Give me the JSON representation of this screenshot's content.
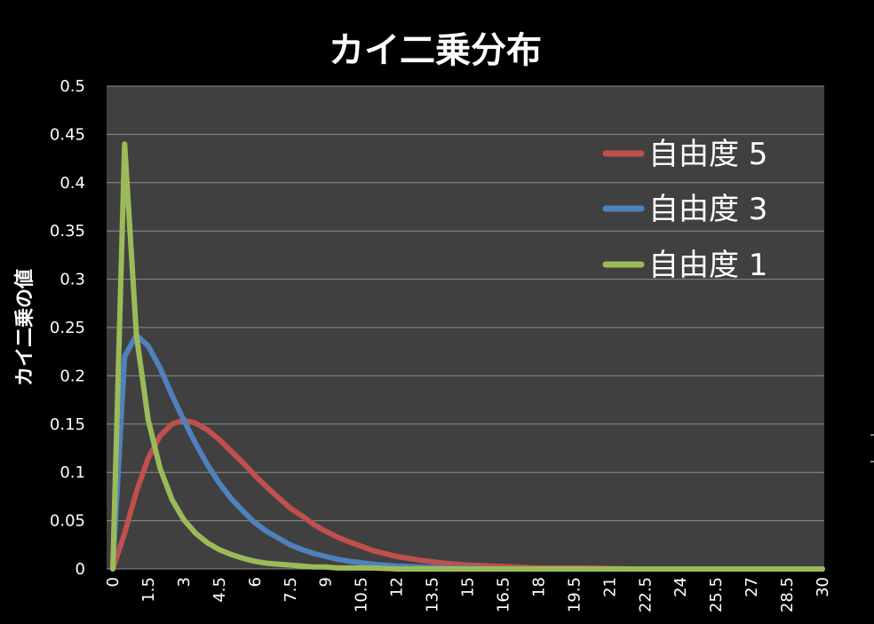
{
  "chart_data": {
    "type": "line",
    "title": "カイ二乗分布",
    "xlabel": "",
    "ylabel": "カイ二乗の値",
    "xlim": [
      0,
      30
    ],
    "ylim": [
      0,
      0.5
    ],
    "y_ticks": [
      "0",
      "0.05",
      "0.1",
      "0.15",
      "0.2",
      "0.25",
      "0.3",
      "0.35",
      "0.4",
      "0.45",
      "0.5"
    ],
    "x_ticks": [
      "0",
      "1.5",
      "3",
      "4.5",
      "6",
      "7.5",
      "9",
      "10.5",
      "12",
      "13.5",
      "15",
      "16.5",
      "18",
      "19.5",
      "21",
      "22.5",
      "24",
      "25.5",
      "27",
      "28.5",
      "30"
    ],
    "grid": true,
    "legend_position": "top-right",
    "background": "#404040",
    "x": [
      0,
      0.5,
      1,
      1.5,
      2,
      2.5,
      3,
      3.5,
      4,
      4.5,
      5,
      5.5,
      6,
      6.5,
      7,
      7.5,
      8,
      8.5,
      9,
      9.5,
      10,
      11,
      12,
      13,
      14,
      15,
      16,
      17,
      18,
      19,
      20,
      22,
      24,
      26,
      28,
      30
    ],
    "series": [
      {
        "name": "自由度 5",
        "color": "#c0504d",
        "values": [
          0,
          0.037,
          0.08,
          0.115,
          0.138,
          0.15,
          0.154,
          0.151,
          0.144,
          0.134,
          0.122,
          0.11,
          0.097,
          0.085,
          0.074,
          0.063,
          0.055,
          0.046,
          0.039,
          0.033,
          0.028,
          0.019,
          0.013,
          0.009,
          0.006,
          0.004,
          0.003,
          0.002,
          0.001,
          0.001,
          0.001,
          0.0,
          0.0,
          0.0,
          0.0,
          0.0
        ]
      },
      {
        "name": "自由度 3",
        "color": "#4f81bd",
        "values": [
          0,
          0.22,
          0.242,
          0.231,
          0.208,
          0.18,
          0.154,
          0.13,
          0.108,
          0.089,
          0.073,
          0.06,
          0.048,
          0.039,
          0.032,
          0.025,
          0.02,
          0.016,
          0.013,
          0.01,
          0.008,
          0.005,
          0.003,
          0.002,
          0.001,
          0.001,
          0.0,
          0.0,
          0.0,
          0.0,
          0.0,
          0.0,
          0.0,
          0.0,
          0.0,
          0.0
        ]
      },
      {
        "name": "自由度 1",
        "color": "#9bbb59",
        "values": [
          0,
          0.44,
          0.242,
          0.154,
          0.104,
          0.072,
          0.051,
          0.037,
          0.027,
          0.02,
          0.015,
          0.011,
          0.008,
          0.006,
          0.005,
          0.004,
          0.003,
          0.002,
          0.002,
          0.001,
          0.001,
          0.001,
          0.0,
          0.0,
          0.0,
          0.0,
          0.0,
          0.0,
          0.0,
          0.0,
          0.0,
          0.0,
          0.0,
          0.0,
          0.0,
          0.0
        ]
      }
    ]
  }
}
